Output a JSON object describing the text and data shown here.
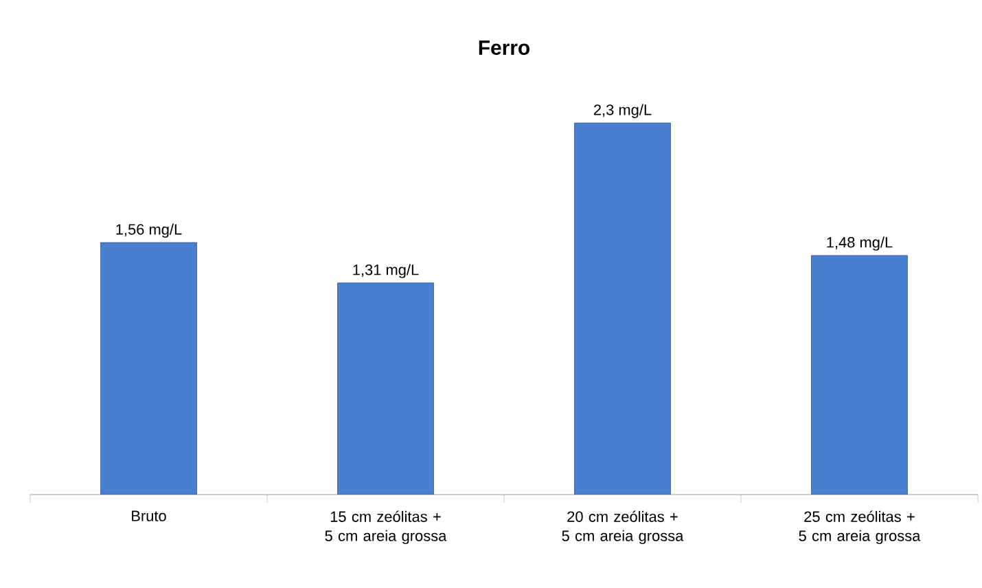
{
  "chart_data": {
    "type": "bar",
    "title": "Ferro",
    "categories": [
      "Bruto",
      "15 cm zeólitas + 5 cm areia grossa",
      "20 cm zeólitas + 5 cm areia grossa",
      "25 cm zeólitas + 5 cm areia grossa"
    ],
    "values": [
      1.56,
      1.31,
      2.3,
      1.48
    ],
    "color": "#4a7ecf",
    "value_labels": [
      "1,56 mg/L",
      "1,31 mg/L",
      "2,3 mg/L",
      "1,48 mg/L"
    ],
    "grid": false
  }
}
